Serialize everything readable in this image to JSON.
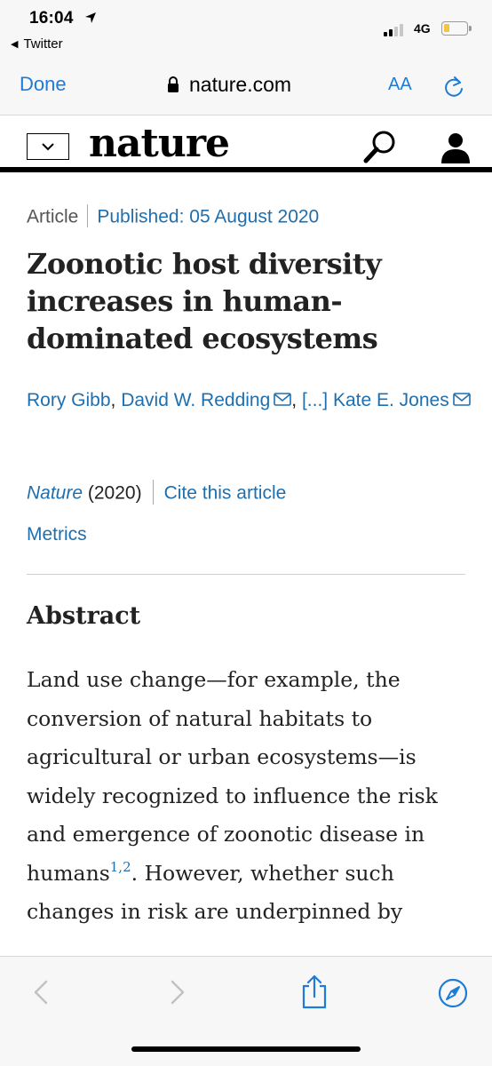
{
  "status_bar": {
    "time": "16:04",
    "back_app": "Twitter",
    "network": "4G",
    "signal_bars_filled": 2,
    "signal_bars_total": 4,
    "battery_level_percent": 20
  },
  "browser": {
    "done_label": "Done",
    "url": "nature.com",
    "text_size_label": "AA",
    "reload_icon": "reload-icon"
  },
  "site_header": {
    "logo_text": "nature",
    "menu_icon": "chevron-down-icon",
    "search_icon": "search-icon",
    "account_icon": "user-icon"
  },
  "article": {
    "type": "Article",
    "published": "Published: 05 August 2020",
    "title": "Zoonotic host diversity increases in human-dominated ecosystems",
    "authors": [
      {
        "name": "Rory Gibb",
        "mail": false
      },
      {
        "name": "David W. Redding",
        "mail": true
      },
      {
        "name": "[...] Kate E. Jones",
        "mail": true
      }
    ],
    "journal": "Nature",
    "year": "(2020)",
    "cite_label": "Cite this article",
    "metrics_label": "Metrics",
    "abstract_heading": "Abstract",
    "abstract_lines": [
      "Land use change—for example, the",
      "conversion of natural habitats to",
      "agricultural or urban ecosystems—is",
      "widely recognized to influence the risk",
      "and emergence of zoonotic disease in",
      "humans",
      ". However, whether such",
      "changes in risk are underpinned by"
    ],
    "abstract_ref": "1,2"
  },
  "toolbar": {
    "back_icon": "back-icon",
    "forward_icon": "forward-icon",
    "share_icon": "share-icon",
    "compass_icon": "compass-icon"
  },
  "colors": {
    "link": "#1f6fae",
    "ios_blue": "#1f7bd6",
    "battery": "#f3c63b"
  }
}
